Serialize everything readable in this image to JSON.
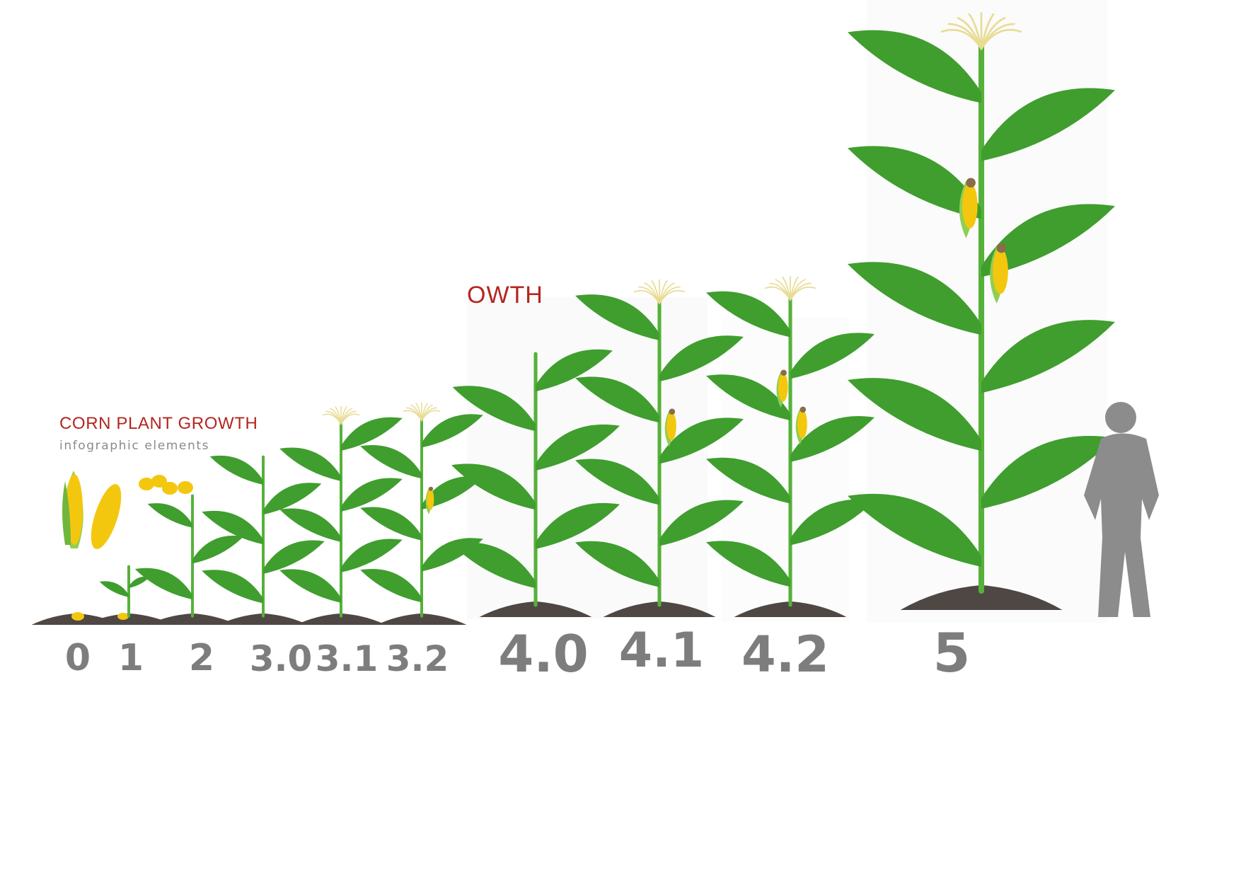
{
  "header": {
    "title": "CORN PLANT GROWTH",
    "subtitle": "infographic elements",
    "title_fragment": "OWTH"
  },
  "stages": [
    {
      "label": "0",
      "icon": "seed-icon"
    },
    {
      "label": "1",
      "icon": "sprout-icon"
    },
    {
      "label": "2",
      "icon": "seedling-icon"
    },
    {
      "label": "3.0",
      "icon": "corn-plant-icon"
    },
    {
      "label": "3.1",
      "icon": "corn-plant-tassel-icon"
    },
    {
      "label": "3.2",
      "icon": "corn-plant-ears-icon"
    },
    {
      "label": "4.0",
      "icon": "corn-plant-icon"
    },
    {
      "label": "4.1",
      "icon": "corn-plant-tassel-icon"
    },
    {
      "label": "4.2",
      "icon": "corn-plant-ears-icon"
    },
    {
      "label": "5",
      "icon": "mature-corn-plant-icon"
    }
  ],
  "colors": {
    "title": "#b3261e",
    "subtitle": "#8a8a8a",
    "leaf": "#3f9e2e",
    "stem": "#56b13a",
    "soil": "#4e4744",
    "corn": "#f4c70f",
    "husk": "#8fcf52",
    "tassel": "#e8dc95",
    "silhouette": "#8c8c8c",
    "label": "#7d7d7d"
  }
}
